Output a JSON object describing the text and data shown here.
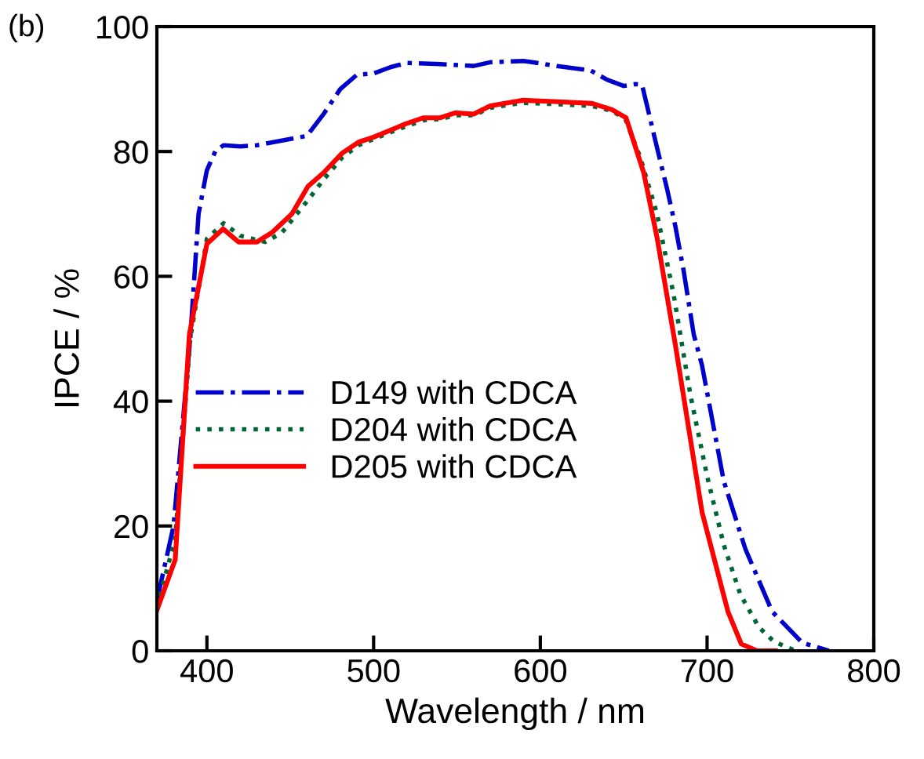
{
  "chart_data": {
    "type": "line",
    "title": "(b)",
    "xlabel": "Wavelength / nm",
    "ylabel": "IPCE / %",
    "xlim": [
      370,
      800
    ],
    "xticks": [
      400,
      500,
      600,
      700,
      800
    ],
    "ylim": [
      0,
      100
    ],
    "yticks": [
      0,
      20,
      40,
      60,
      80,
      100
    ],
    "grid": false,
    "legend": "center",
    "marker": "none",
    "series": [
      {
        "name": "D149 with CDCA",
        "color": "#0000cc",
        "line_style": "dashdot",
        "x": [
          370,
          380,
          390,
          395,
          400,
          405,
          410,
          420,
          430,
          440,
          450,
          460,
          470,
          480,
          490,
          500,
          510,
          520,
          540,
          560,
          570,
          590,
          610,
          630,
          640,
          650,
          657,
          661,
          669,
          676,
          681,
          686,
          692,
          697,
          710,
          723,
          739,
          757,
          773
        ],
        "values": [
          8,
          20,
          50,
          70,
          77,
          80,
          81,
          80.8,
          81,
          81.5,
          82,
          82.5,
          86,
          90,
          92.3,
          92.5,
          93.5,
          94.2,
          94,
          93.7,
          94.3,
          94.5,
          93.7,
          93,
          91.5,
          90.5,
          90.8,
          90.7,
          81.7,
          74,
          68,
          60.8,
          50.7,
          45.7,
          27.2,
          16.3,
          6.3,
          1.3,
          0
        ]
      },
      {
        "name": "D204 with CDCA",
        "color": "#006633",
        "line_style": "dotted",
        "x": [
          370,
          381,
          390,
          400,
          410,
          420,
          435,
          445,
          460,
          470,
          481,
          491,
          500,
          519,
          530,
          540,
          549,
          560,
          570,
          589,
          608,
          631,
          643,
          651,
          660,
          670,
          680,
          690,
          700,
          710,
          720,
          731,
          740,
          753
        ],
        "values": [
          7,
          18,
          50,
          66,
          68.5,
          66.5,
          65.5,
          67,
          72,
          75.5,
          79,
          81,
          82,
          84,
          85,
          85.2,
          85.8,
          85.8,
          87,
          87.8,
          87.6,
          87.3,
          86.5,
          85.2,
          79,
          70,
          57,
          41,
          28,
          17,
          9,
          3.8,
          1.5,
          0
        ]
      },
      {
        "name": "D205 with CDCA",
        "color": "#ff0000",
        "line_style": "solid",
        "x": [
          370,
          381,
          389.5,
          400,
          409.7,
          419,
          430,
          439,
          451,
          460.6,
          470,
          481,
          491,
          500,
          519,
          530,
          540,
          549,
          560,
          570,
          589,
          608,
          631,
          643,
          651.4,
          662,
          670,
          681,
          697,
          712.5,
          720.5,
          730,
          741
        ],
        "values": [
          6.5,
          14.6,
          50.7,
          65.2,
          67.6,
          65.5,
          65.5,
          67,
          70,
          74.4,
          76.6,
          79.7,
          81.5,
          82.3,
          84.4,
          85.4,
          85.4,
          86.2,
          86,
          87.3,
          88.2,
          88,
          87.7,
          86.7,
          85.4,
          76.6,
          66.2,
          49,
          22.2,
          6.3,
          1.1,
          0,
          0
        ]
      }
    ]
  }
}
